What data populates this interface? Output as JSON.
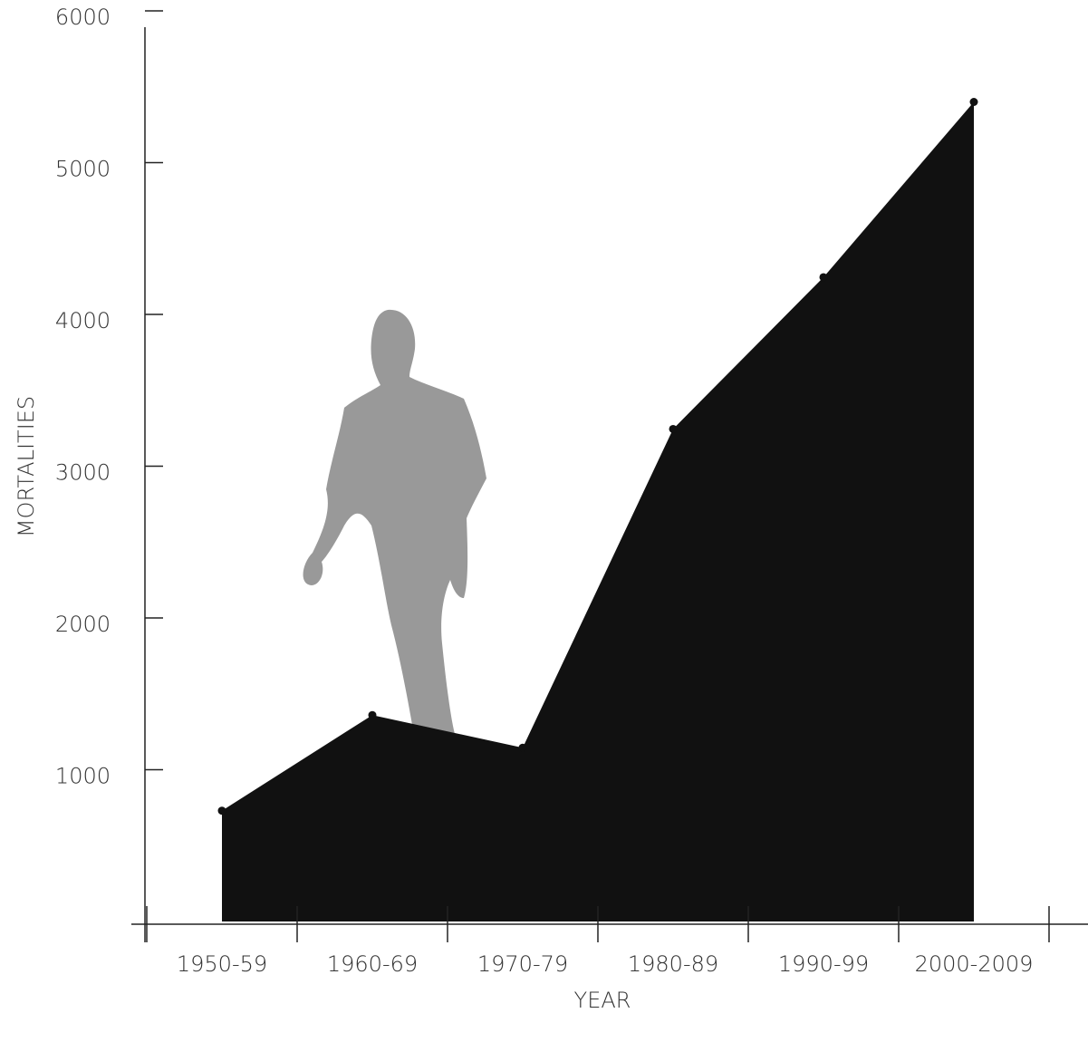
{
  "chart_data": {
    "type": "area",
    "x_label": "YEAR",
    "y_label": "MORTALITIES",
    "categories": [
      "1950-59",
      "1960-69",
      "1970-79",
      "1980-89",
      "1990-99",
      "2000-2009"
    ],
    "values": [
      730,
      1360,
      1145,
      3245,
      4245,
      5400
    ],
    "color": "#111111",
    "ylim": [
      0,
      6000
    ],
    "yticks": [
      1000,
      2000,
      3000,
      4000,
      5000,
      6000
    ],
    "markers": true
  }
}
